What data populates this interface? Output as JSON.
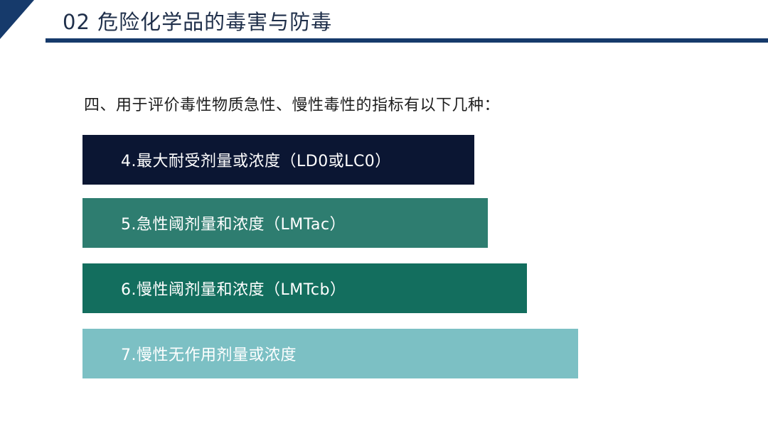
{
  "header": {
    "title": "02  危险化学品的毒害与防毒"
  },
  "intro": {
    "text": "四、用于评价毒性物质急性、慢性毒性的指标有以下几种："
  },
  "items": [
    {
      "label": "4.最大耐受剂量或浓度（LD0或LC0）",
      "color": "#0b1633"
    },
    {
      "label": "5.急性阈剂量和浓度（LMTac）",
      "color": "#2e7d70"
    },
    {
      "label": "6.慢性阈剂量和浓度（LMTcb）",
      "color": "#136e5e"
    },
    {
      "label": "7.慢性无作用剂量或浓度",
      "color": "#7cc0c4"
    }
  ],
  "colors": {
    "header_accent": "#163a6b",
    "text": "#1e1e1e"
  }
}
